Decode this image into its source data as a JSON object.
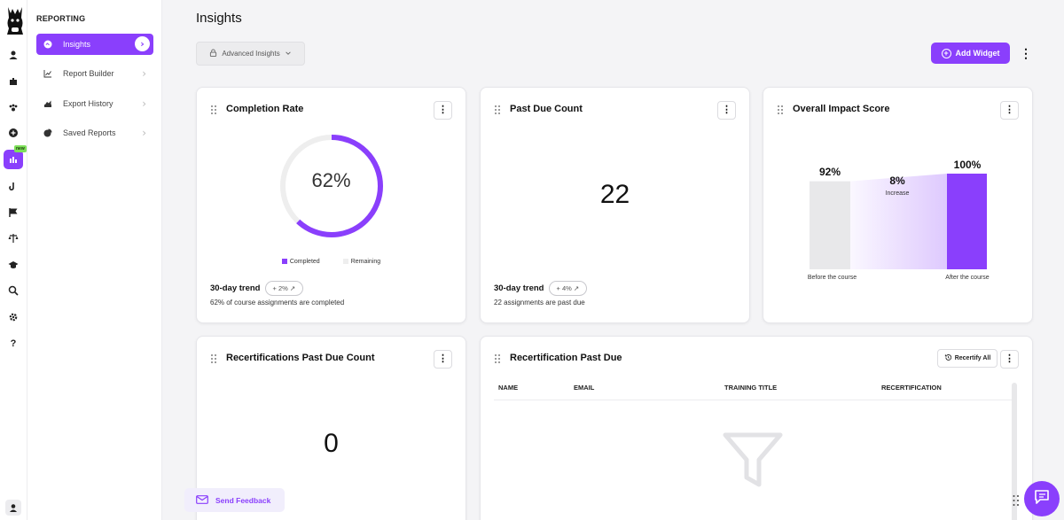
{
  "sidebar": {
    "heading": "REPORTING",
    "new_badge": "new",
    "rail_icons": [
      "llama-logo",
      "user-icon",
      "puzzle-icon",
      "paws-icon",
      "plus-circle-icon",
      "chart-icon",
      "hook-icon",
      "flag-icon",
      "scale-icon",
      "graduation-cap-icon",
      "search-icon",
      "gear-icon",
      "help-icon",
      "profile-icon"
    ],
    "items": [
      {
        "label": "Insights",
        "icon": "insights-icon",
        "active": true
      },
      {
        "label": "Report Builder",
        "icon": "line-chart-icon",
        "active": false
      },
      {
        "label": "Export History",
        "icon": "export-icon",
        "active": false
      },
      {
        "label": "Saved Reports",
        "icon": "pie-icon",
        "active": false
      }
    ]
  },
  "header": {
    "title": "Insights",
    "advanced_label": "Advanced Insights",
    "add_widget_label": "Add Widget"
  },
  "colors": {
    "accent": "#8a3ffc",
    "remaining": "#eeeeee",
    "before_bar": "#e8e8ea",
    "new_badge": "#7ee05a"
  },
  "cards": {
    "completion": {
      "title": "Completion Rate",
      "value": "62%",
      "percent": 62,
      "legend_completed": "Completed",
      "legend_remaining": "Remaining",
      "trend_label": "30-day trend",
      "trend_value": "+ 2% ↗",
      "subtext": "62% of course assignments are completed"
    },
    "past_due": {
      "title": "Past Due Count",
      "value": "22",
      "trend_label": "30-day trend",
      "trend_value": "+ 4% ↗",
      "subtext": "22 assignments are past due"
    },
    "impact": {
      "title": "Overall Impact Score",
      "before_value": "92%",
      "before_pct": 92,
      "after_value": "100%",
      "after_pct": 100,
      "change_value": "8%",
      "change_label": "Increase",
      "before_label": "Before the course",
      "after_label": "After the course"
    },
    "recert_count": {
      "title": "Recertifications Past Due Count",
      "value": "0"
    },
    "recert_table": {
      "title": "Recertification Past Due",
      "recertify_label": "Recertify All",
      "columns": [
        "NAME",
        "EMAIL",
        "TRAINING TITLE",
        "RECERTIFICATION"
      ]
    }
  },
  "feedback_label": "Send Feedback"
}
